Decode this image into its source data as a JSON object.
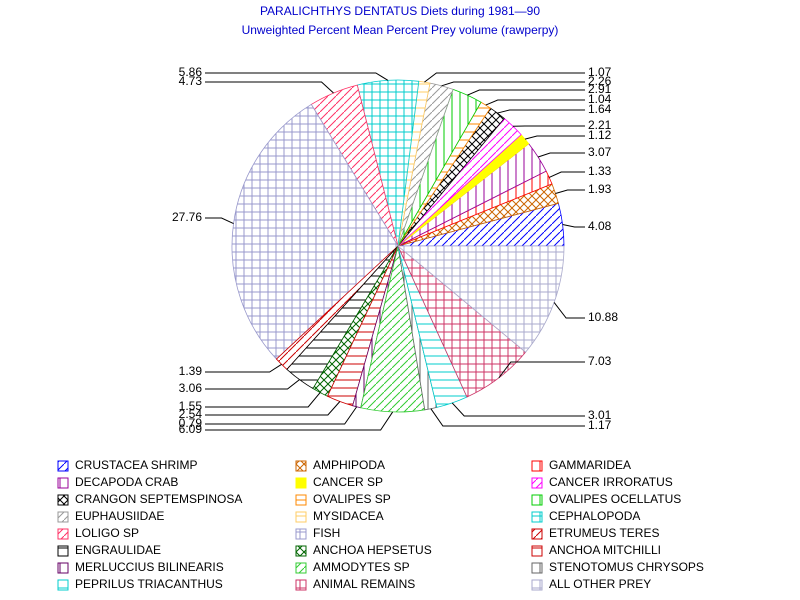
{
  "chart_data": {
    "type": "pie",
    "title": "PARALICHTHYS DENTATUS Diets during 1981—90",
    "subtitle": "Unweighted Percent Mean Percent Prey  volume (rawperpy)",
    "categories": [
      "CRUSTACEA SHRIMP",
      "AMPHIPODA",
      "GAMMARIDEA",
      "DECAPODA CRAB",
      "CANCER SP",
      "CANCER IRRORATUS",
      "CRANGON SEPTEMSPINOSA",
      "OVALIPES SP",
      "OVALIPES OCELLATUS",
      "EUPHAUSIIDAE",
      "MYSIDACEA",
      "CEPHALOPODA",
      "LOLIGO SP",
      "FISH",
      "ETRUMEUS TERES",
      "ENGRAULIDAE",
      "ANCHOA HEPSETUS",
      "ANCHOA MITCHILLI",
      "MERLUCCIUS BILINEARIS",
      "AMMODYTES SP",
      "STENOTOMUS CHRYSOPS",
      "PEPRILUS TRIACANTHUS",
      "ANIMAL REMAINS",
      "ALL OTHER PREY"
    ],
    "values": [
      4.08,
      1.93,
      1.33,
      3.07,
      1.12,
      2.21,
      1.64,
      1.04,
      2.91,
      2.26,
      1.07,
      5.86,
      4.73,
      27.76,
      1.39,
      3.06,
      1.55,
      2.54,
      0.79,
      6.09,
      1.17,
      3.01,
      7.03,
      10.88
    ],
    "colors": [
      "#0000ff",
      "#cc6600",
      "#ff0000",
      "#990099",
      "#ffff00",
      "#ff00ff",
      "#000000",
      "#ff8800",
      "#00cc00",
      "#999999",
      "#ffcc66",
      "#00cccc",
      "#ff3366",
      "#9999cc",
      "#cc0000",
      "#000000",
      "#006600",
      "#cc0000",
      "#660066",
      "#33cc33",
      "#666666",
      "#00cccc",
      "#cc3366",
      "#aaaacc"
    ]
  }
}
